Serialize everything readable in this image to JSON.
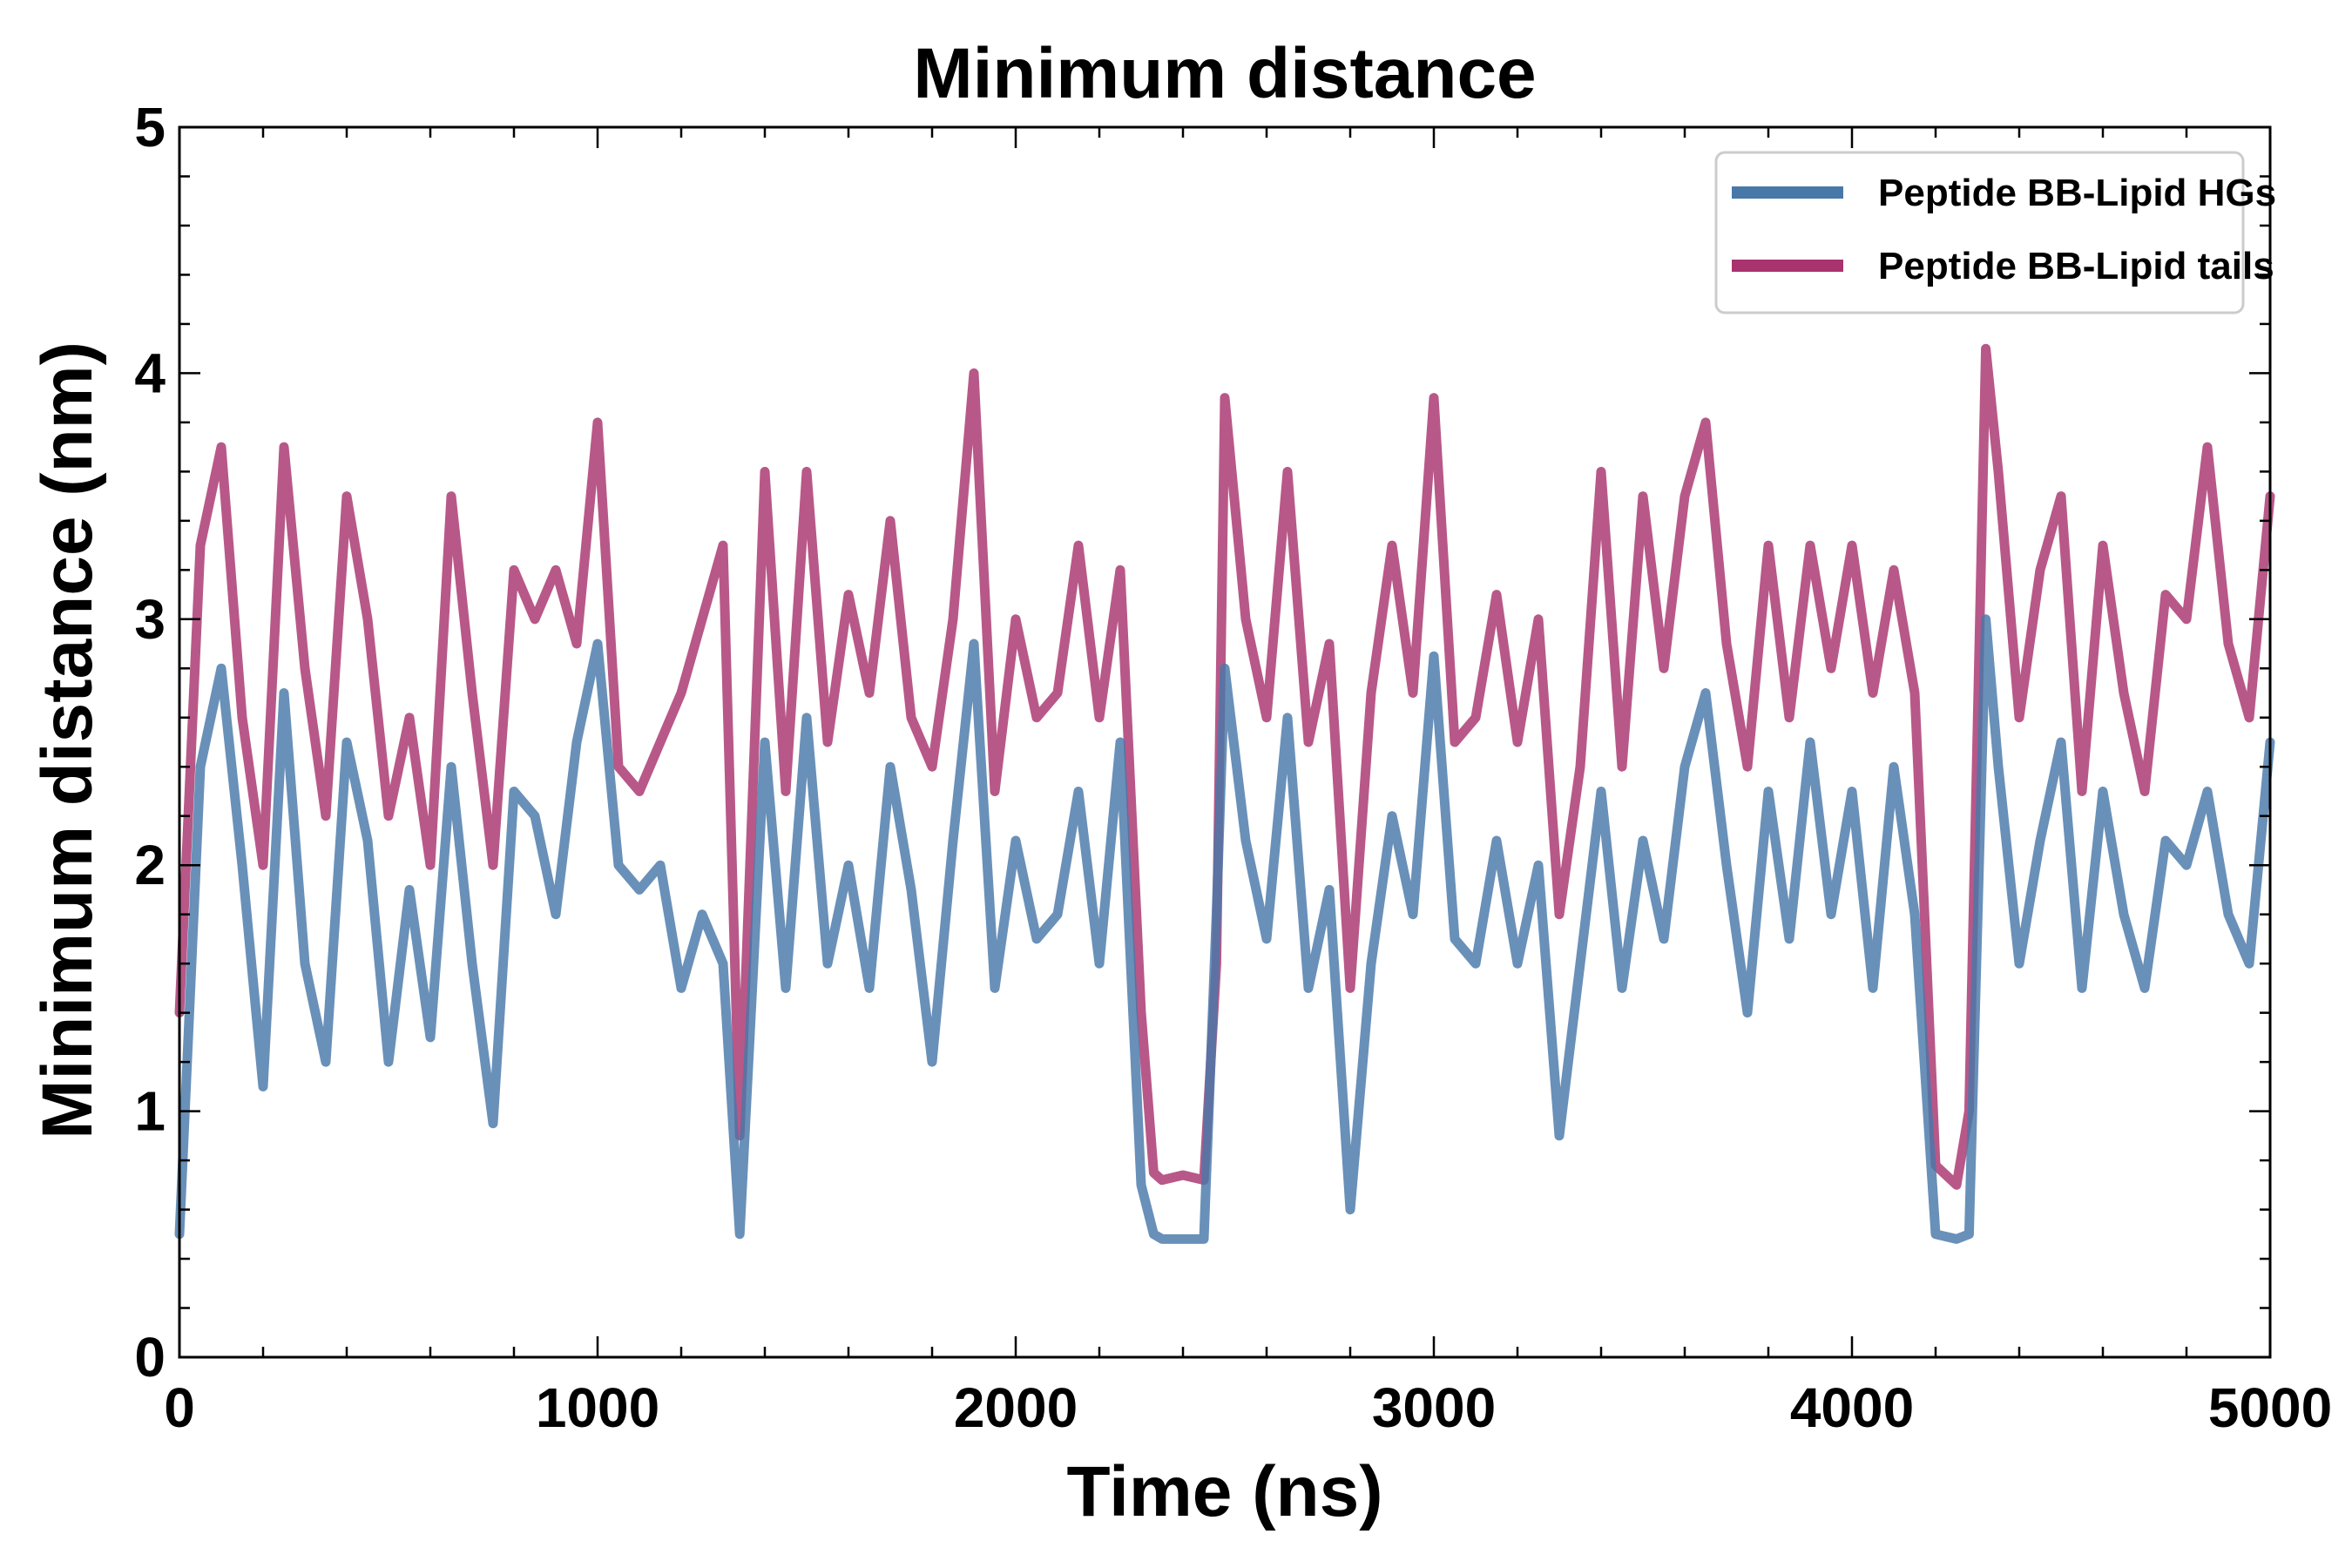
{
  "chart_data": {
    "type": "line",
    "title": "Minimum distance",
    "xlabel": "Time (ns)",
    "ylabel": "Minimum distance (nm)",
    "xlim": [
      0,
      5000
    ],
    "ylim": [
      0,
      5
    ],
    "xticks": [
      0,
      1000,
      2000,
      3000,
      4000,
      5000
    ],
    "yticks": [
      0,
      1,
      2,
      3,
      4,
      5
    ],
    "grid": false,
    "legend_position": "top-right",
    "x": [
      0,
      50,
      100,
      150,
      200,
      250,
      300,
      350,
      400,
      450,
      500,
      550,
      600,
      650,
      700,
      750,
      800,
      850,
      900,
      950,
      1000,
      1050,
      1100,
      1150,
      1200,
      1250,
      1300,
      1340,
      1400,
      1450,
      1500,
      1550,
      1600,
      1650,
      1700,
      1750,
      1800,
      1850,
      1900,
      1950,
      2000,
      2050,
      2100,
      2150,
      2200,
      2250,
      2300,
      2330,
      2350,
      2400,
      2450,
      2480,
      2500,
      2550,
      2600,
      2650,
      2700,
      2750,
      2800,
      2850,
      2900,
      2950,
      3000,
      3050,
      3100,
      3150,
      3200,
      3250,
      3300,
      3350,
      3400,
      3450,
      3500,
      3550,
      3600,
      3650,
      3700,
      3750,
      3800,
      3850,
      3900,
      3950,
      4000,
      4050,
      4100,
      4150,
      4200,
      4250,
      4280,
      4320,
      4350,
      4400,
      4450,
      4500,
      4550,
      4600,
      4650,
      4700,
      4750,
      4800,
      4850,
      4900,
      4950,
      5000
    ],
    "series": [
      {
        "name": "Peptide BB-Lipid HGs",
        "color": "#4878a8",
        "values": [
          0.5,
          2.4,
          2.8,
          2.0,
          1.1,
          2.7,
          1.6,
          1.2,
          2.5,
          2.1,
          1.2,
          1.9,
          1.3,
          2.4,
          1.6,
          0.95,
          2.3,
          2.2,
          1.8,
          2.5,
          2.9,
          2.0,
          1.9,
          2.0,
          1.5,
          1.8,
          1.6,
          0.5,
          2.5,
          1.5,
          2.6,
          1.6,
          2.0,
          1.5,
          2.4,
          1.9,
          1.2,
          2.1,
          2.9,
          1.5,
          2.1,
          1.7,
          1.8,
          2.3,
          1.6,
          2.5,
          0.7,
          0.5,
          0.48,
          0.48,
          0.48,
          1.8,
          2.8,
          2.1,
          1.7,
          2.6,
          1.5,
          1.9,
          0.6,
          1.6,
          2.2,
          1.8,
          2.85,
          1.7,
          1.6,
          2.1,
          1.6,
          2.0,
          0.9,
          1.6,
          2.3,
          1.5,
          2.1,
          1.7,
          2.4,
          2.7,
          2.0,
          1.4,
          2.3,
          1.7,
          2.5,
          1.8,
          2.3,
          1.5,
          2.4,
          1.8,
          0.5,
          0.48,
          0.5,
          3.0,
          2.4,
          1.6,
          2.1,
          2.5,
          1.5,
          2.3,
          1.8,
          1.5,
          2.1,
          2.0,
          2.3,
          1.8,
          1.6,
          2.5
        ]
      },
      {
        "name": "Peptide BB-Lipid tails",
        "color": "#a8336e",
        "values": [
          1.4,
          3.3,
          3.7,
          2.6,
          2.0,
          3.7,
          2.8,
          2.2,
          3.5,
          3.0,
          2.2,
          2.6,
          2.0,
          3.5,
          2.7,
          2.0,
          3.2,
          3.0,
          3.2,
          2.9,
          3.8,
          2.4,
          2.3,
          2.5,
          2.7,
          3.0,
          3.3,
          0.9,
          3.6,
          2.3,
          3.6,
          2.5,
          3.1,
          2.7,
          3.4,
          2.6,
          2.4,
          3.0,
          4.0,
          2.3,
          3.0,
          2.6,
          2.7,
          3.3,
          2.6,
          3.2,
          1.4,
          0.75,
          0.72,
          0.74,
          0.72,
          1.6,
          3.9,
          3.0,
          2.6,
          3.6,
          2.5,
          2.9,
          1.5,
          2.7,
          3.3,
          2.7,
          3.9,
          2.5,
          2.6,
          3.1,
          2.5,
          3.0,
          1.8,
          2.4,
          3.6,
          2.4,
          3.5,
          2.8,
          3.5,
          3.8,
          2.9,
          2.4,
          3.3,
          2.6,
          3.3,
          2.8,
          3.3,
          2.7,
          3.2,
          2.7,
          0.78,
          0.7,
          1.0,
          4.1,
          3.6,
          2.6,
          3.2,
          3.5,
          2.3,
          3.3,
          2.7,
          2.3,
          3.1,
          3.0,
          3.7,
          2.9,
          2.6,
          3.5
        ]
      }
    ]
  }
}
